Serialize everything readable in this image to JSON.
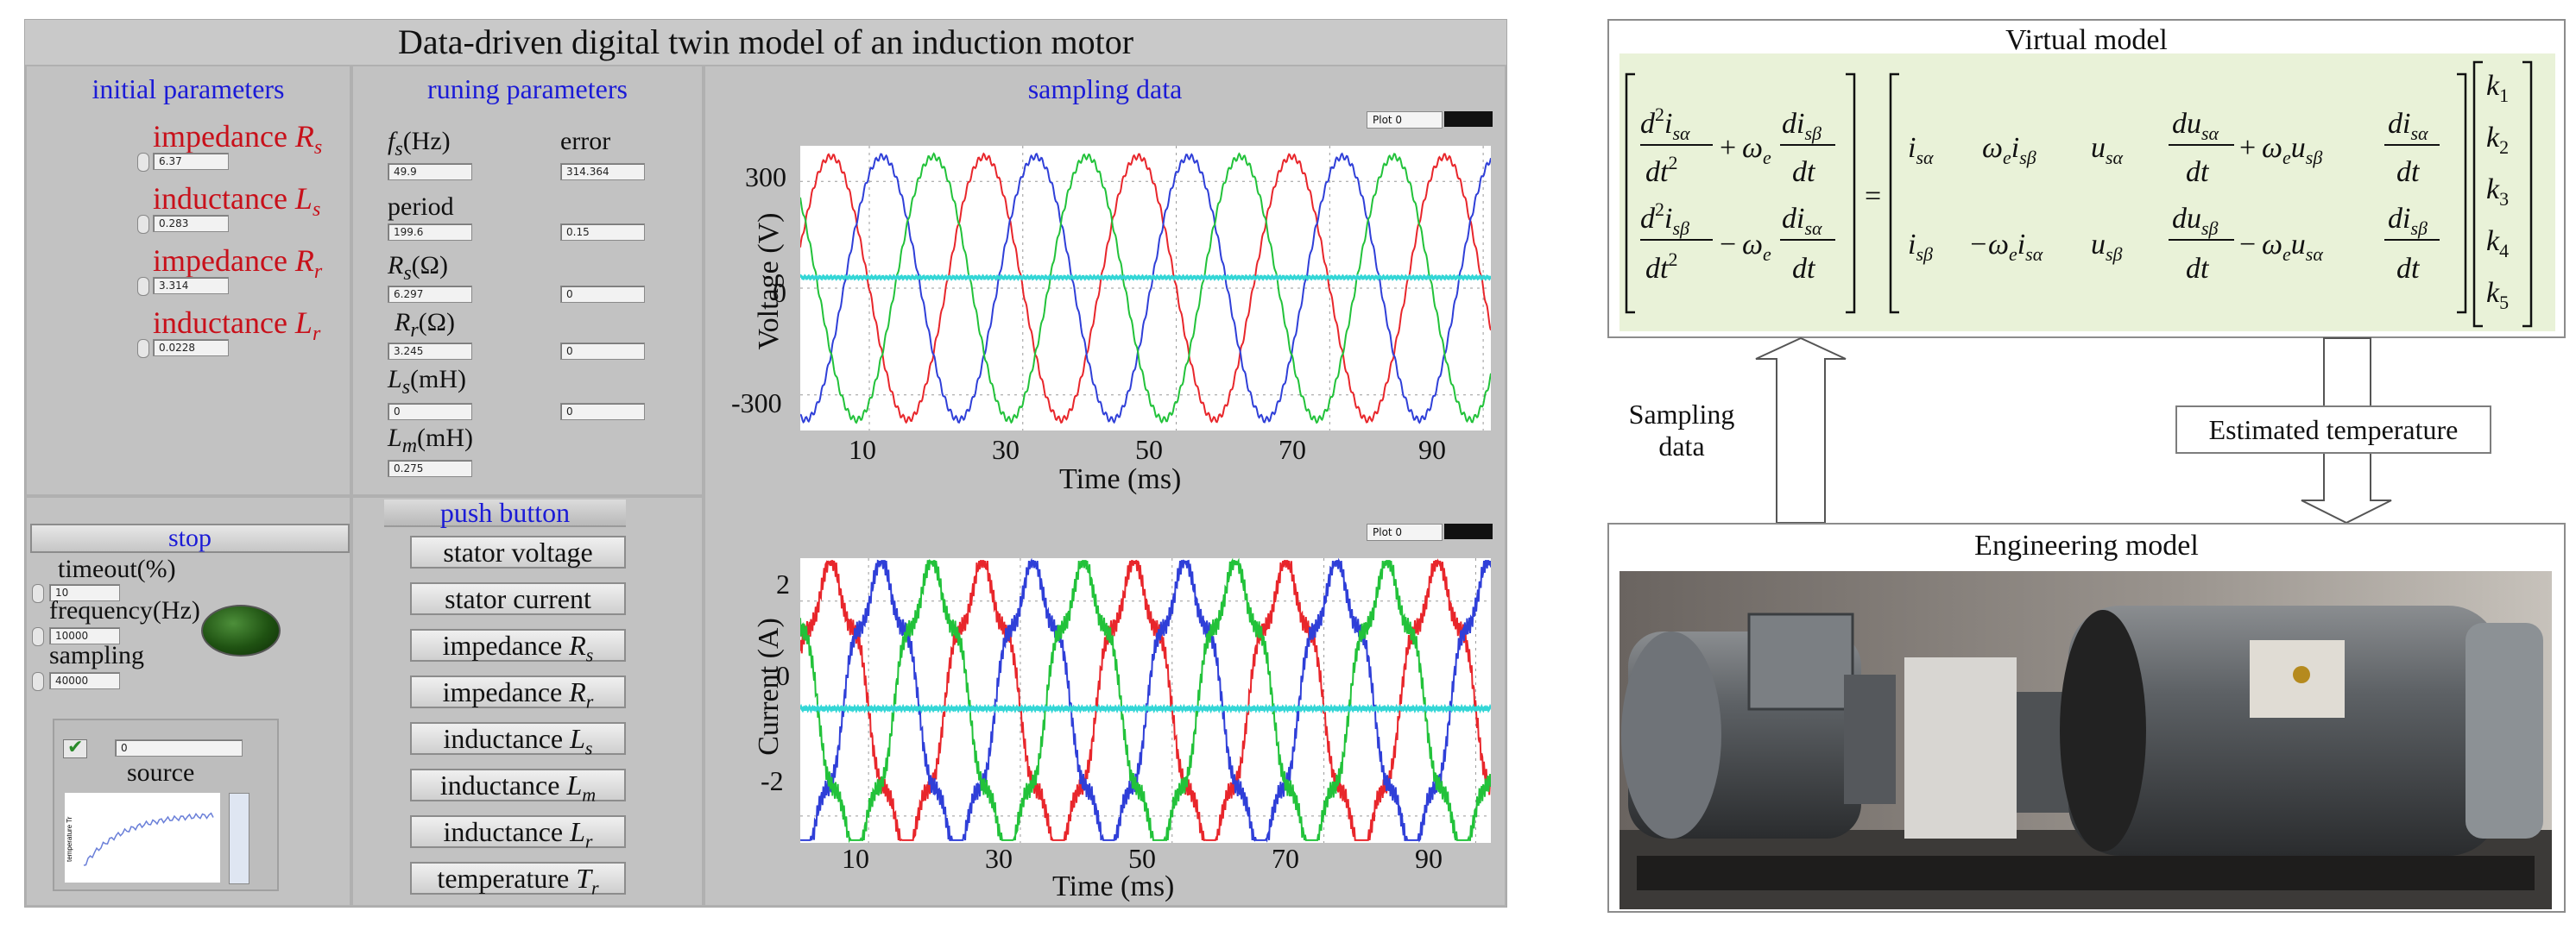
{
  "panel": {
    "title": "Data-driven digital twin model of an induction motor",
    "sections": {
      "initial": "initial parameters",
      "running": "runing parameters",
      "sampling": "sampling data",
      "stop": "stop",
      "push": "push button"
    },
    "initial_params": [
      {
        "label": "impedance",
        "symbol": "R",
        "sub": "s",
        "value": "6.37"
      },
      {
        "label": "inductance",
        "symbol": "L",
        "sub": "s",
        "value": "0.283"
      },
      {
        "label": "impedance",
        "symbol": "R",
        "sub": "r",
        "value": "3.314"
      },
      {
        "label": "inductance",
        "symbol": "L",
        "sub": "r",
        "value": "0.0228"
      }
    ],
    "running_params": {
      "fs_sym": "f",
      "fs_sub": "s",
      "fs_unit": "(Hz)",
      "fs_value": "49.9",
      "error_label": "error",
      "error_value": "314.364",
      "period_label": "period",
      "period_value": "199.6",
      "period_error": "0.15",
      "rs_sym": "R",
      "rs_sub": "s",
      "rs_unit": "(Ω)",
      "rs_value": "6.297",
      "rs_error": "0",
      "rr_sym": "R",
      "rr_sub": "r",
      "rr_unit": "(Ω)",
      "rr_value": "3.245",
      "rr_error": "0",
      "ls_sym": "L",
      "ls_sub": "s",
      "ls_unit": "(mH)",
      "ls_value": "0",
      "ls_error": "0",
      "lm_sym": "L",
      "lm_sub": "m",
      "lm_unit": "(mH)",
      "lm_value": "0.275"
    },
    "stop_panel": {
      "timeout_label": "timeout(%)",
      "timeout_value": "10",
      "frequency_label": "frequency(Hz)",
      "frequency_value": "10000",
      "sampling_label": "sampling",
      "sampling_value": "40000",
      "source_label": "source",
      "source_value": "0",
      "mini_plot_ylabel": "temperature Tr"
    },
    "push_buttons": [
      {
        "text": "stator voltage",
        "sym": "",
        "sub": ""
      },
      {
        "text": "stator current",
        "sym": "",
        "sub": ""
      },
      {
        "text": "impedance ",
        "sym": "R",
        "sub": "s"
      },
      {
        "text": "impedance ",
        "sym": "R",
        "sub": "r"
      },
      {
        "text": "inductance ",
        "sym": "L",
        "sub": "s"
      },
      {
        "text": "inductance ",
        "sym": "L",
        "sub": "m"
      },
      {
        "text": "inductance ",
        "sym": "L",
        "sub": "r"
      },
      {
        "text": "temperature ",
        "sym": "T",
        "sub": "r"
      }
    ],
    "plot_legend_label": "Plot 0",
    "colors": {
      "phase_a": "#e8262b",
      "phase_b": "#2f3fd8",
      "phase_c": "#22c23a",
      "neutral": "#33d6d6"
    }
  },
  "chart_data": [
    {
      "type": "line",
      "xlabel": "Time (ms)",
      "ylabel": "Voltage (V)",
      "x_range": [
        1,
        91
      ],
      "ylim": [
        -400,
        400
      ],
      "xticks": [
        10,
        30,
        50,
        70,
        90
      ],
      "yticks": [
        300,
        0,
        -300
      ],
      "series": [
        {
          "color": "phase_a",
          "amplitude": 370,
          "frequency_hz": 50,
          "phase_deg": 0
        },
        {
          "color": "phase_b",
          "amplitude": 370,
          "frequency_hz": 50,
          "phase_deg": -120
        },
        {
          "color": "phase_c",
          "amplitude": 370,
          "frequency_hz": 50,
          "phase_deg": 120
        },
        {
          "color": "neutral",
          "amplitude": 0,
          "offset": 30
        }
      ]
    },
    {
      "type": "line",
      "xlabel": "Time (ms)",
      "ylabel": "Current (A)",
      "x_range": [
        1,
        92
      ],
      "ylim": [
        -2.5,
        2.8
      ],
      "xticks": [
        10,
        30,
        50,
        70,
        90
      ],
      "yticks": [
        2,
        0,
        -2
      ],
      "series": [
        {
          "color": "phase_a",
          "amplitude": 2.5,
          "frequency_hz": 50,
          "phase_deg": 0
        },
        {
          "color": "phase_b",
          "amplitude": 2.5,
          "frequency_hz": 50,
          "phase_deg": -120
        },
        {
          "color": "phase_c",
          "amplitude": 2.5,
          "frequency_hz": 50,
          "phase_deg": 120
        },
        {
          "color": "neutral",
          "amplitude": 0,
          "offset": 0
        }
      ]
    }
  ],
  "diagram": {
    "virtual_title": "Virtual model",
    "engineering_title": "Engineering model",
    "sampling_text_1": "Sampling",
    "sampling_text_2": "data",
    "estimated_text": "Estimated temperature",
    "k_vector": [
      "k1",
      "k2",
      "k3",
      "k4",
      "k5"
    ]
  }
}
